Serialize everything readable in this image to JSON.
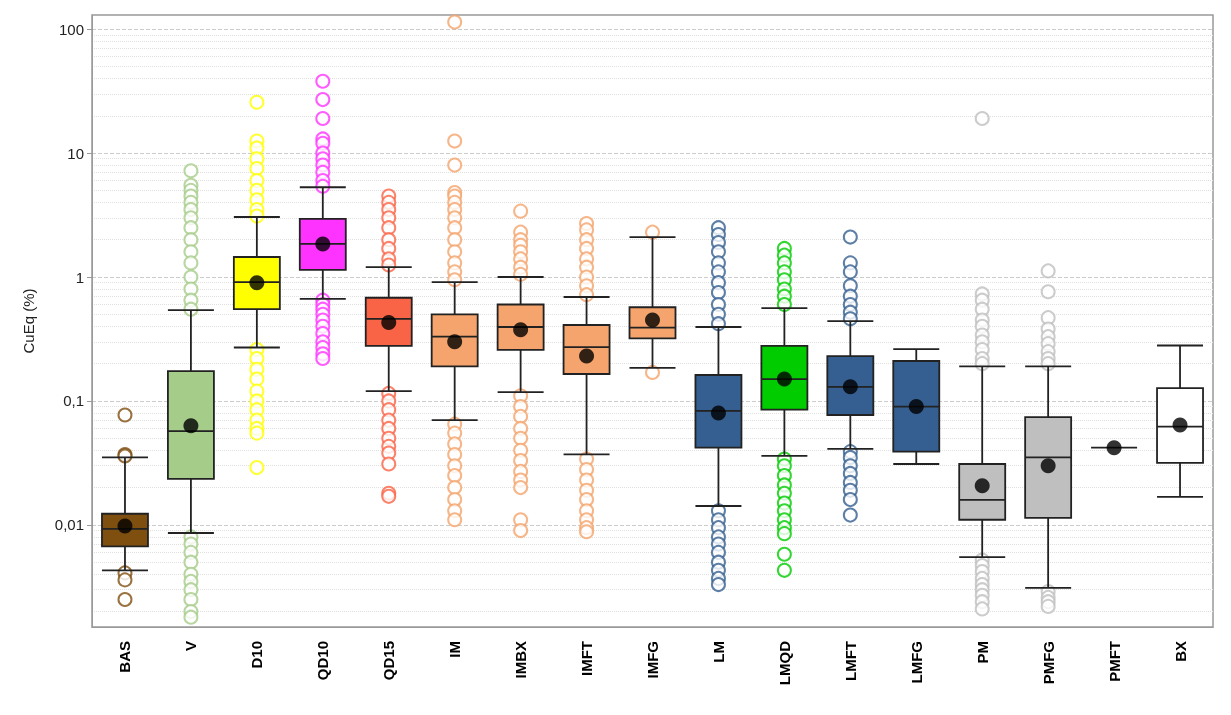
{
  "chart_data": {
    "type": "box",
    "ylabel": "CuEq (%)",
    "log": true,
    "grid": "y",
    "categories": [
      "BAS",
      "V",
      "D10",
      "QD10",
      "QD15",
      "IM",
      "IMBX",
      "IMFT",
      "IMFG",
      "LM",
      "LMQD",
      "LMFT",
      "LMFG",
      "PM",
      "PMFG",
      "PMFT",
      "BX"
    ],
    "colors": [
      "#7f4f10",
      "#a6cc8a",
      "#ffff00",
      "#ff33ff",
      "#fa6446",
      "#f4a46c",
      "#f4a46c",
      "#f4a46c",
      "#f4a46c",
      "#355f90",
      "#00cc00",
      "#355f90",
      "#355f90",
      "#bfbfbf",
      "#bfbfbf",
      "#222222",
      "#ffffff"
    ],
    "ylim": [
      0.0015,
      130
    ],
    "yticks": [
      {
        "value": 0.01,
        "label": "0,01"
      },
      {
        "value": 0.1,
        "label": "0,1"
      },
      1,
      10,
      100
    ],
    "boxes": [
      {
        "low": 0.0043,
        "q1": 0.0067,
        "median": 0.0093,
        "q3": 0.0123,
        "high": 0.035,
        "mean": 0.0098,
        "outliers": [
          0.077,
          0.037,
          0.036,
          0.0041,
          0.0036,
          0.0025
        ]
      },
      {
        "low": 0.0086,
        "q1": 0.0235,
        "median": 0.057,
        "q3": 0.174,
        "high": 0.54,
        "mean": 0.063,
        "outliers": [
          7.2,
          5.5,
          5,
          4.5,
          4,
          3.5,
          3,
          2.5,
          2,
          1.6,
          1.3,
          1,
          0.8,
          0.65,
          0.55,
          0.008,
          0.007,
          0.006,
          0.005,
          0.004,
          0.0035,
          0.003,
          0.0025,
          0.002,
          0.0018
        ]
      },
      {
        "low": 0.27,
        "q1": 0.55,
        "median": 0.91,
        "q3": 1.45,
        "high": 3.05,
        "mean": 0.9,
        "outliers": [
          25.7,
          12.5,
          11,
          9,
          7.5,
          6,
          5,
          4.2,
          3.5,
          3.1,
          0.26,
          0.22,
          0.18,
          0.15,
          0.12,
          0.1,
          0.085,
          0.07,
          0.06,
          0.055,
          0.029
        ]
      },
      {
        "low": 0.665,
        "q1": 1.14,
        "median": 1.85,
        "q3": 2.94,
        "high": 5.3,
        "mean": 1.85,
        "outliers": [
          38,
          27,
          19,
          13,
          12,
          10,
          9,
          8,
          7,
          6,
          5.4,
          0.65,
          0.6,
          0.55,
          0.5,
          0.45,
          0.4,
          0.35,
          0.3,
          0.27,
          0.24,
          0.22
        ]
      },
      {
        "low": 0.12,
        "q1": 0.278,
        "median": 0.46,
        "q3": 0.68,
        "high": 1.2,
        "mean": 0.43,
        "outliers": [
          4.5,
          4,
          3.5,
          3,
          2.5,
          2,
          1.7,
          1.4,
          1.25,
          0.115,
          0.1,
          0.085,
          0.07,
          0.06,
          0.05,
          0.043,
          0.038,
          0.031,
          0.018,
          0.017
        ]
      },
      {
        "low": 0.07,
        "q1": 0.19,
        "median": 0.33,
        "q3": 0.5,
        "high": 0.91,
        "mean": 0.3,
        "outliers": [
          114,
          12.5,
          8,
          4.8,
          4.5,
          4,
          3.5,
          3,
          2.5,
          2,
          1.6,
          1.3,
          1.1,
          0.95,
          0.065,
          0.055,
          0.045,
          0.037,
          0.03,
          0.025,
          0.02,
          0.016,
          0.013,
          0.011
        ]
      },
      {
        "low": 0.118,
        "q1": 0.258,
        "median": 0.395,
        "q3": 0.6,
        "high": 1.0,
        "mean": 0.375,
        "outliers": [
          3.4,
          2.3,
          2,
          1.8,
          1.6,
          1.4,
          1.2,
          1.05,
          0.11,
          0.09,
          0.075,
          0.06,
          0.05,
          0.04,
          0.033,
          0.027,
          0.023,
          0.02,
          0.011,
          0.009
        ]
      },
      {
        "low": 0.037,
        "q1": 0.165,
        "median": 0.272,
        "q3": 0.41,
        "high": 0.69,
        "mean": 0.23,
        "outliers": [
          2.7,
          2.4,
          2,
          1.7,
          1.4,
          1.2,
          1,
          0.85,
          0.72,
          0.034,
          0.028,
          0.023,
          0.019,
          0.016,
          0.013,
          0.011,
          0.0095,
          0.0088
        ]
      },
      {
        "low": 0.185,
        "q1": 0.32,
        "median": 0.39,
        "q3": 0.57,
        "high": 2.1,
        "mean": 0.45,
        "outliers": [
          2.3,
          0.17
        ]
      },
      {
        "low": 0.0142,
        "q1": 0.042,
        "median": 0.083,
        "q3": 0.162,
        "high": 0.395,
        "mean": 0.08,
        "outliers": [
          2.5,
          2.2,
          1.9,
          1.6,
          1.3,
          1.1,
          0.9,
          0.75,
          0.6,
          0.5,
          0.42,
          0.013,
          0.011,
          0.0095,
          0.008,
          0.007,
          0.006,
          0.005,
          0.0043,
          0.0037,
          0.0033
        ]
      },
      {
        "low": 0.036,
        "q1": 0.085,
        "median": 0.15,
        "q3": 0.278,
        "high": 0.56,
        "mean": 0.15,
        "outliers": [
          1.7,
          1.5,
          1.3,
          1.1,
          0.95,
          0.8,
          0.7,
          0.6,
          0.034,
          0.03,
          0.025,
          0.021,
          0.018,
          0.015,
          0.013,
          0.011,
          0.0095,
          0.0085,
          0.0058,
          0.0043
        ]
      },
      {
        "low": 0.041,
        "q1": 0.077,
        "median": 0.13,
        "q3": 0.23,
        "high": 0.44,
        "mean": 0.13,
        "outliers": [
          2.1,
          1.3,
          1.1,
          0.85,
          0.7,
          0.6,
          0.52,
          0.46,
          0.039,
          0.035,
          0.03,
          0.026,
          0.022,
          0.019,
          0.016,
          0.012
        ]
      },
      {
        "low": 0.031,
        "q1": 0.039,
        "median": 0.09,
        "q3": 0.21,
        "high": 0.262,
        "mean": 0.09
      },
      {
        "low": 0.0055,
        "q1": 0.011,
        "median": 0.0159,
        "q3": 0.031,
        "high": 0.19,
        "mean": 0.0207,
        "outliers": [
          19,
          0.73,
          0.65,
          0.55,
          0.45,
          0.4,
          0.34,
          0.3,
          0.26,
          0.22,
          0.2,
          0.0052,
          0.0047,
          0.0042,
          0.0037,
          0.0033,
          0.003,
          0.0027,
          0.0024,
          0.0021
        ]
      },
      {
        "low": 0.0031,
        "q1": 0.0114,
        "median": 0.035,
        "q3": 0.074,
        "high": 0.19,
        "mean": 0.03,
        "outliers": [
          1.12,
          0.76,
          0.47,
          0.38,
          0.33,
          0.29,
          0.25,
          0.22,
          0.2,
          0.0029,
          0.0026,
          0.0024,
          0.0022
        ]
      },
      {
        "low": 0.042,
        "q1": 0.042,
        "median": 0.042,
        "q3": 0.042,
        "high": 0.042,
        "mean": 0.042
      },
      {
        "low": 0.0168,
        "q1": 0.0316,
        "median": 0.062,
        "q3": 0.127,
        "high": 0.28,
        "mean": 0.064
      }
    ]
  }
}
